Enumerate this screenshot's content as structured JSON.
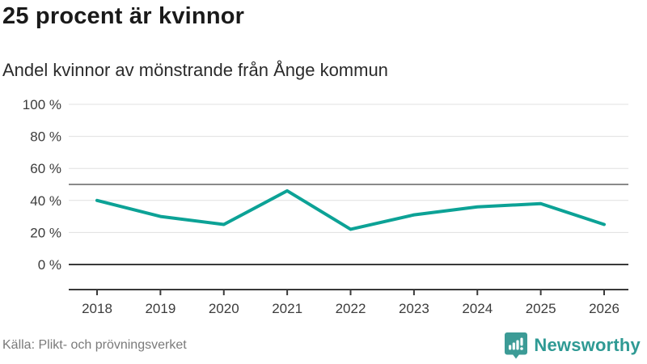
{
  "header": {
    "title": "25 procent är kvinnor",
    "subtitle": "Andel kvinnor av mönstrande från Ånge kommun"
  },
  "chart_data": {
    "type": "line",
    "title": "25 procent är kvinnor",
    "subtitle": "Andel kvinnor av mönstrande från Ånge kommun",
    "x": [
      2018,
      2019,
      2020,
      2021,
      2022,
      2023,
      2024,
      2025,
      2026
    ],
    "series": [
      {
        "name": "Andel kvinnor av mönstrande",
        "values": [
          40,
          30,
          25,
          46,
          22,
          31,
          36,
          38,
          25
        ]
      }
    ],
    "xlabel": "",
    "ylabel": "",
    "ylim": [
      0,
      100
    ],
    "yticks": [
      0,
      20,
      40,
      60,
      80,
      100
    ],
    "ytick_suffix": " %",
    "reference_line": 50,
    "grid": true,
    "legend_position": "none",
    "line_color": "#0ca296",
    "colors": {
      "grid": "#e0e0e0",
      "reference": "#8a8a8a",
      "axis": "#3a3a3a"
    }
  },
  "footer": {
    "source": "Källa: Plikt- och prövningsverket",
    "brand": "Newsworthy"
  },
  "icons": {
    "brand_logo": "newsworthy-bubble-barchart-icon"
  },
  "colors": {
    "accent": "#0ca296",
    "brand": "#2f9a94",
    "title_text": "#1a1a1a",
    "muted_text": "#7a7a7a"
  }
}
